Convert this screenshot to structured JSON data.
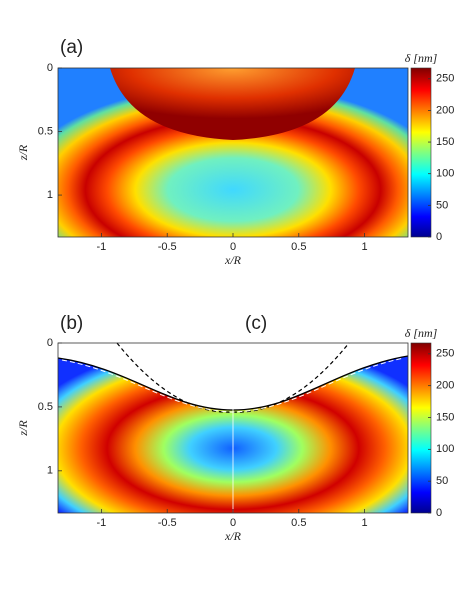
{
  "chart_data": [
    {
      "type": "heatmap",
      "panel_labels": [
        "(a)"
      ],
      "xlabel": "x/R",
      "ylabel": "z/R",
      "colorbar_label": "δ [nm]",
      "xlim": [
        -1.33,
        1.33
      ],
      "xticks": [
        -1,
        -0.5,
        0,
        0.5,
        1
      ],
      "ylim": [
        0,
        1.33
      ],
      "yticks": [
        0,
        0.5,
        1
      ],
      "clim": [
        0,
        267
      ],
      "cticks": [
        0,
        50,
        100,
        150,
        200,
        250
      ]
    },
    {
      "type": "heatmap",
      "panel_labels": [
        "(b)",
        "(c)"
      ],
      "xlabel": "x/R",
      "ylabel": "z/R",
      "colorbar_label": "δ [nm]",
      "xlim": [
        -1.33,
        1.33
      ],
      "xticks": [
        -1,
        -0.5,
        0,
        0.5,
        1
      ],
      "ylim": [
        0,
        1.33
      ],
      "yticks": [
        0,
        0.5,
        1
      ],
      "clim": [
        0,
        267
      ],
      "cticks": [
        0,
        50,
        100,
        150,
        200,
        250
      ]
    }
  ]
}
